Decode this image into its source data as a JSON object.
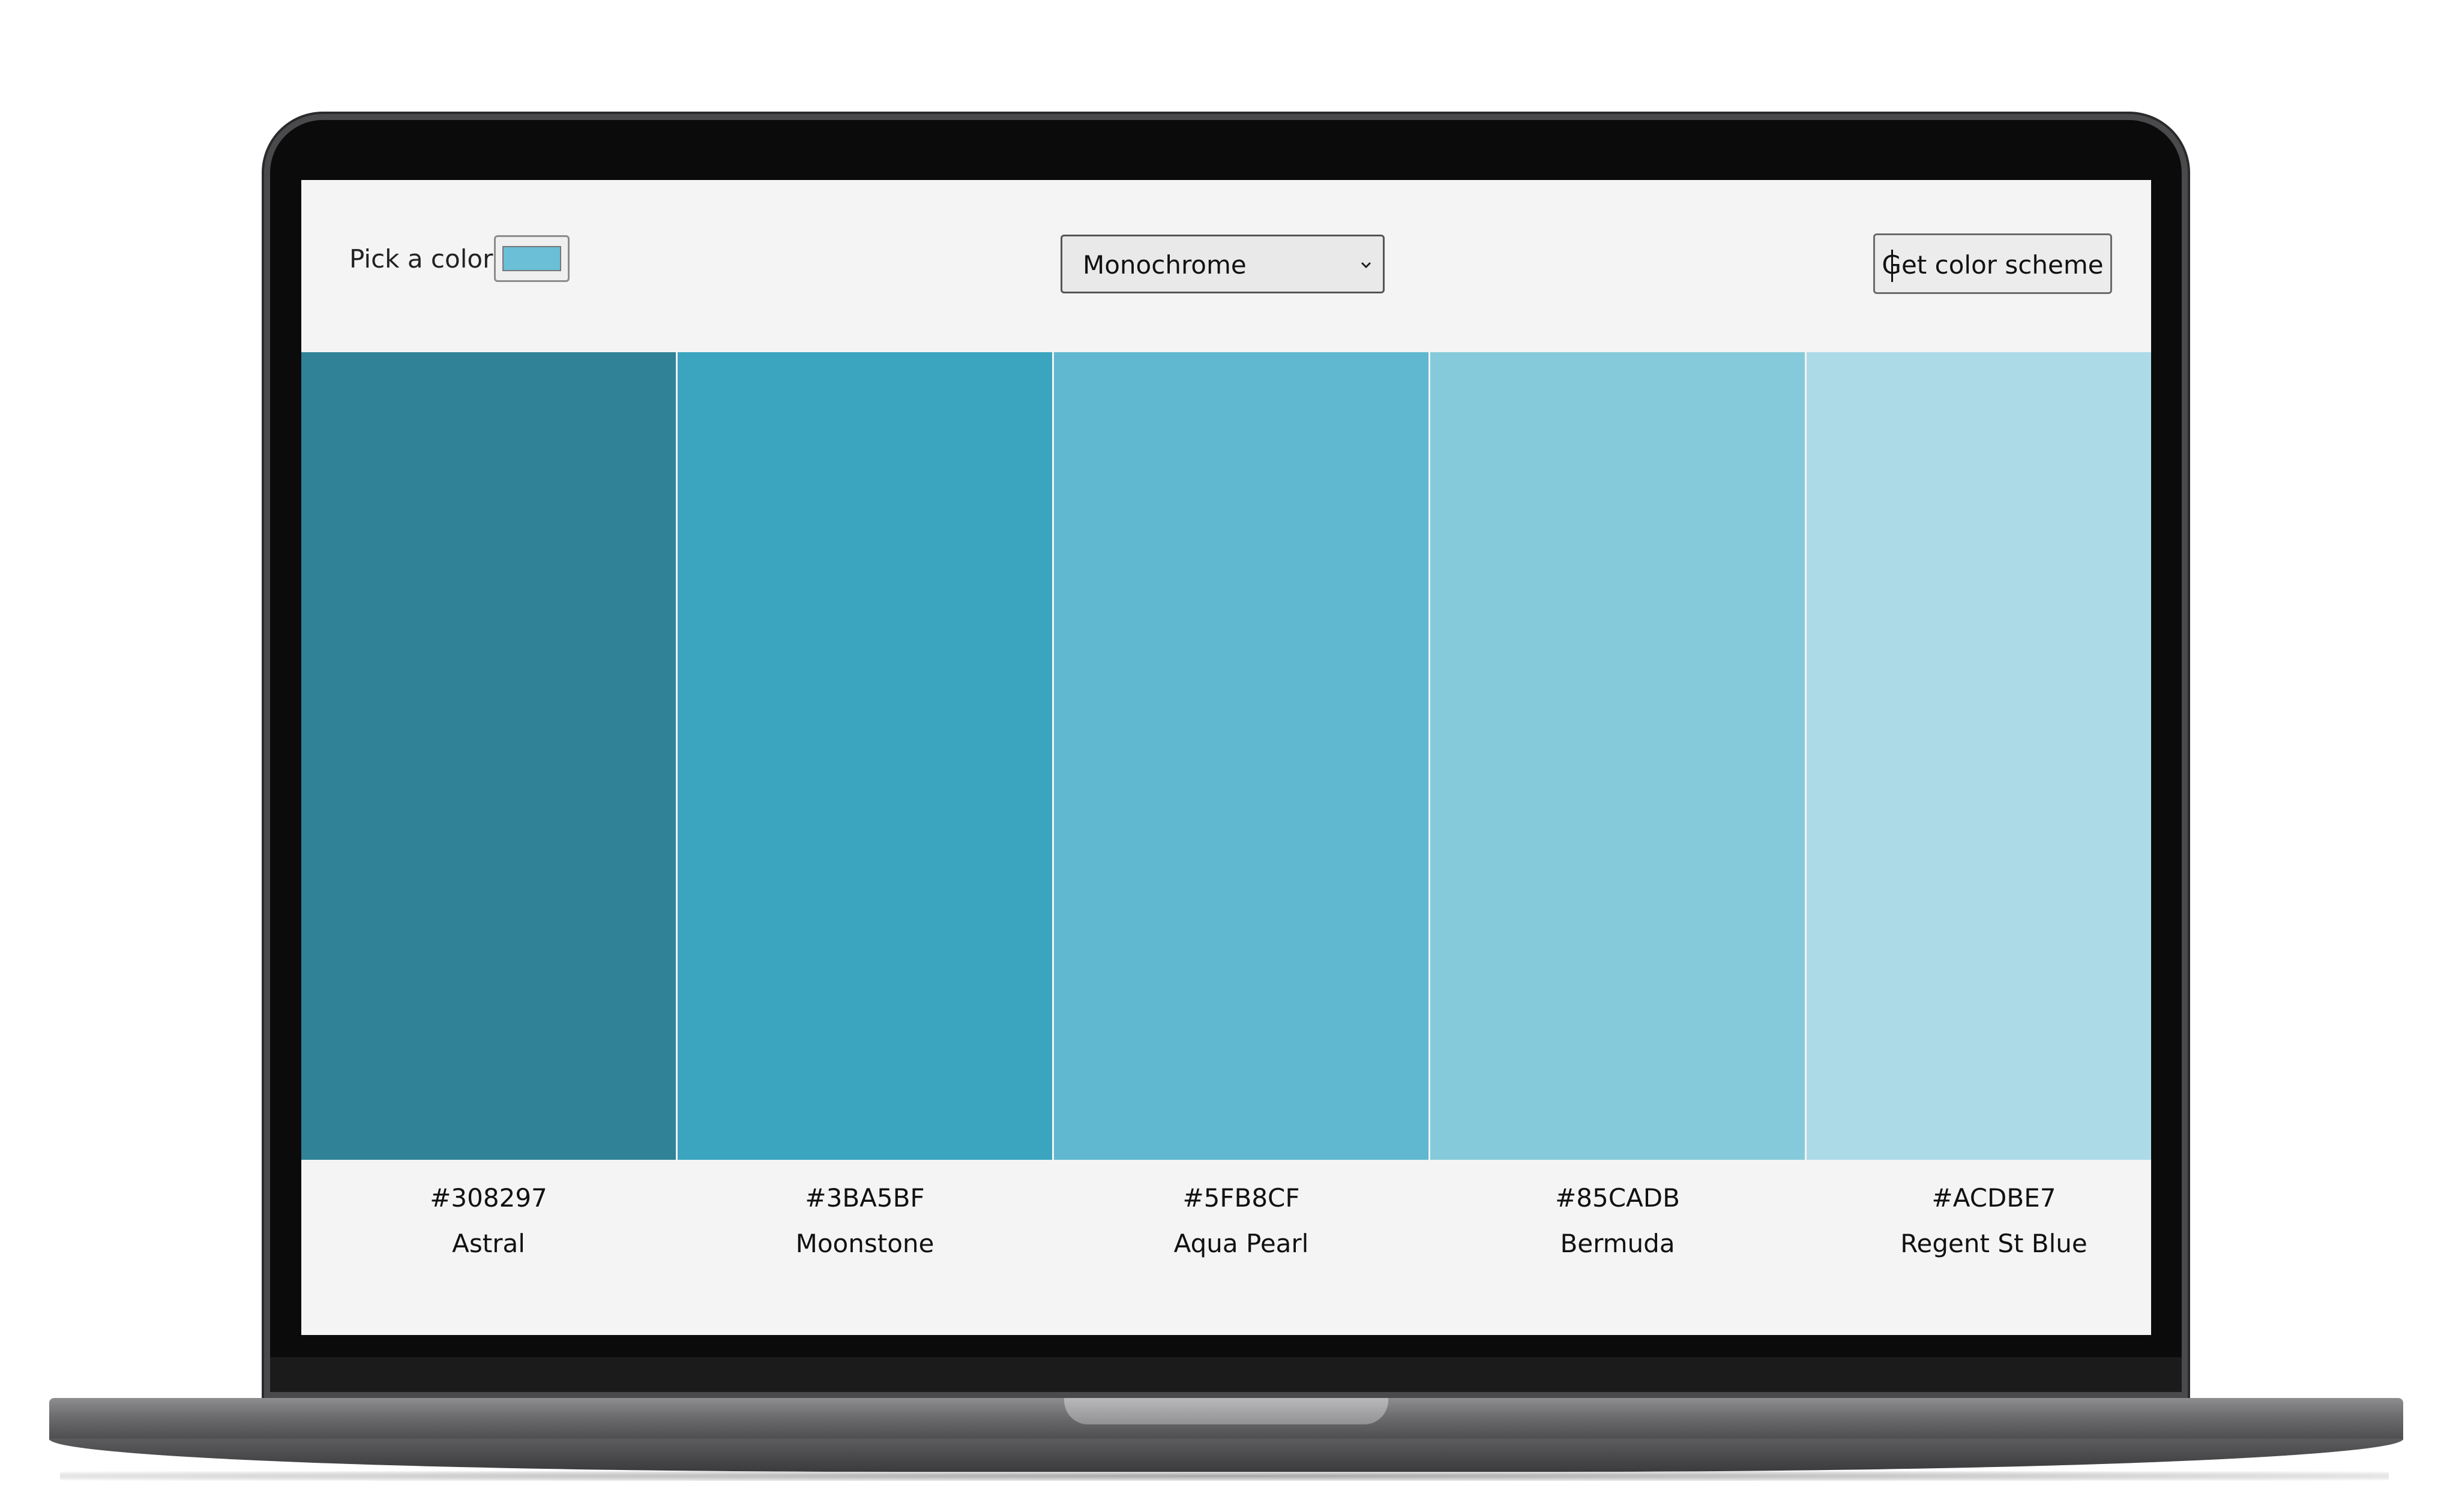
{
  "app": {
    "pick_label": "Pick a color:",
    "picked_color": "#6BBFD6",
    "mode_select": {
      "selected": "Monochrome"
    },
    "submit_label": "Get color scheme"
  },
  "scheme": {
    "colors": [
      {
        "hex": "#308297",
        "name": "Astral"
      },
      {
        "hex": "#3BA5BF",
        "name": "Moonstone"
      },
      {
        "hex": "#5FB8CF",
        "name": "Aqua Pearl"
      },
      {
        "hex": "#85CADB",
        "name": "Bermuda"
      },
      {
        "hex": "#ACDBE7",
        "name": "Regent St Blue"
      }
    ]
  },
  "colors": {
    "page_bg": "#F4F4F4",
    "bezel": "#0B0B0B",
    "chassis": "#6C6C6E"
  }
}
